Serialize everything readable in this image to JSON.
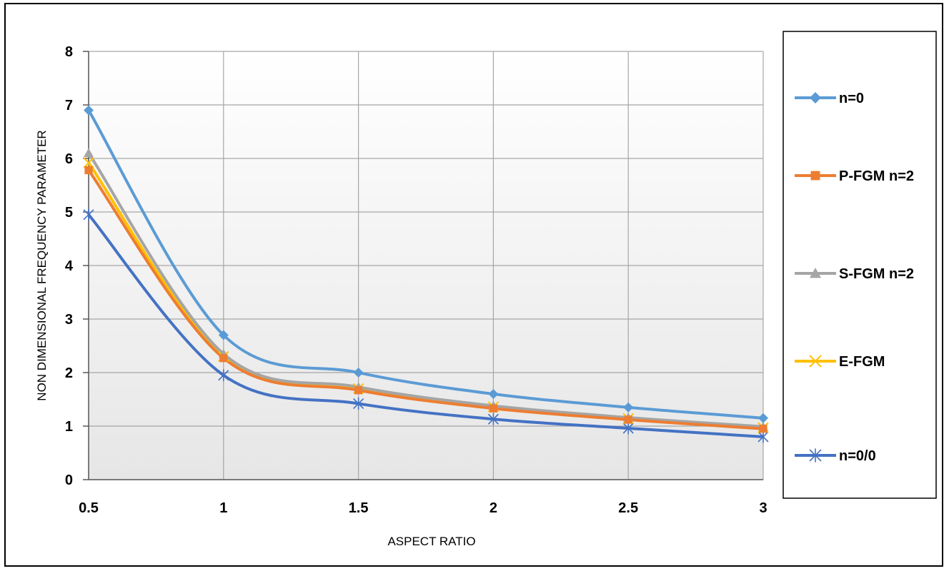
{
  "chart_data": {
    "type": "line",
    "xlabel": "ASPECT RATIO",
    "ylabel": "NON DIMENSIONAL FREQUENCY PARAMETER",
    "xlim": [
      0.5,
      3
    ],
    "ylim": [
      0,
      8
    ],
    "x": [
      0.5,
      1,
      1.5,
      2,
      2.5,
      3
    ],
    "x_ticks": [
      "0.5",
      "1",
      "1.5",
      "2",
      "2.5",
      "3"
    ],
    "y_ticks": [
      "0",
      "1",
      "2",
      "3",
      "4",
      "5",
      "6",
      "7",
      "8"
    ],
    "grid": true,
    "legend_position": "right",
    "series": [
      {
        "name": "n=0",
        "color": "#5b9bd5",
        "marker": "diamond",
        "values": [
          6.9,
          2.7,
          2.0,
          1.6,
          1.35,
          1.15
        ]
      },
      {
        "name": "P-FGM n=2",
        "color": "#ed7d31",
        "marker": "square",
        "values": [
          5.78,
          2.27,
          1.67,
          1.33,
          1.12,
          0.95
        ]
      },
      {
        "name": "S-FGM n=2",
        "color": "#a5a5a5",
        "marker": "triangle",
        "values": [
          6.1,
          2.35,
          1.73,
          1.38,
          1.16,
          0.99
        ]
      },
      {
        "name": "E-FGM",
        "color": "#ffc000",
        "marker": "x",
        "values": [
          5.92,
          2.3,
          1.7,
          1.36,
          1.14,
          0.97
        ]
      },
      {
        "name": "n=0/0",
        "color": "#4472c4",
        "marker": "star",
        "values": [
          4.95,
          1.95,
          1.42,
          1.13,
          0.96,
          0.8
        ]
      }
    ]
  }
}
